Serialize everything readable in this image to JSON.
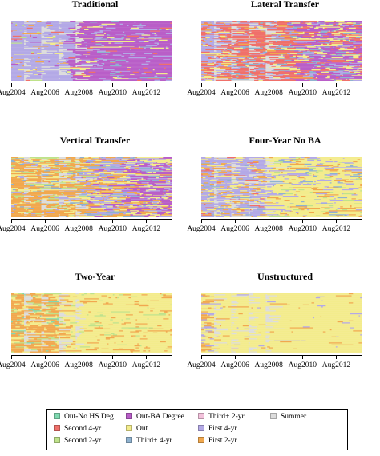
{
  "time_axis": {
    "start": "Aug2004",
    "end": "Dec2013",
    "tick_labels": [
      "Aug2004",
      "Aug2006",
      "Aug2008",
      "Aug2010",
      "Aug2012"
    ]
  },
  "states": [
    {
      "key": "out_no_hs",
      "label": "Out-No HS Deg",
      "color": "#7fd9b0"
    },
    {
      "key": "out",
      "label": "Out",
      "color": "#f3ec8c"
    },
    {
      "key": "first_4yr",
      "label": "First 4-yr",
      "color": "#b3a9e6"
    },
    {
      "key": "second_4yr",
      "label": "Second 4-yr",
      "color": "#f0706a"
    },
    {
      "key": "third_4yr",
      "label": "Third+ 4-yr",
      "color": "#8fb2cf"
    },
    {
      "key": "first_2yr",
      "label": "First 2-yr",
      "color": "#f1a84e"
    },
    {
      "key": "second_2yr",
      "label": "Second 2-yr",
      "color": "#bfe28a"
    },
    {
      "key": "third_2yr",
      "label": "Third+ 2-yr",
      "color": "#f3c2dc"
    },
    {
      "key": "summer",
      "label": "Summer",
      "color": "#dcdcdc"
    },
    {
      "key": "out_ba",
      "label": "Out-BA Degree",
      "color": "#b95ec8"
    }
  ],
  "chart_data": [
    {
      "type": "heatmap",
      "title": "Traditional",
      "regimes": [
        {
          "until": 0.36,
          "weights": {
            "first_4yr": 0.85,
            "first_2yr": 0.05,
            "second_4yr": 0.03,
            "out": 0.03,
            "second_2yr": 0.02,
            "out_ba": 0.02
          }
        },
        {
          "until": 1.0,
          "weights": {
            "out_ba": 0.82,
            "first_4yr": 0.08,
            "out": 0.04,
            "second_4yr": 0.03,
            "third_4yr": 0.03
          }
        }
      ]
    },
    {
      "type": "heatmap",
      "title": "Lateral Transfer",
      "regimes": [
        {
          "until": 0.12,
          "weights": {
            "first_4yr": 0.55,
            "second_4yr": 0.25,
            "first_2yr": 0.1,
            "out": 0.1
          }
        },
        {
          "until": 0.55,
          "weights": {
            "second_4yr": 0.6,
            "first_4yr": 0.15,
            "third_4yr": 0.1,
            "out": 0.08,
            "first_2yr": 0.07
          }
        },
        {
          "until": 1.0,
          "weights": {
            "out_ba": 0.45,
            "second_4yr": 0.18,
            "third_4yr": 0.12,
            "out": 0.15,
            "first_4yr": 0.1
          }
        }
      ]
    },
    {
      "type": "heatmap",
      "title": "Vertical Transfer",
      "regimes": [
        {
          "until": 0.45,
          "weights": {
            "first_2yr": 0.6,
            "out": 0.15,
            "second_2yr": 0.1,
            "first_4yr": 0.08,
            "third_4yr": 0.07
          }
        },
        {
          "until": 0.7,
          "weights": {
            "first_4yr": 0.4,
            "first_2yr": 0.25,
            "out": 0.15,
            "out_ba": 0.1,
            "third_4yr": 0.1
          }
        },
        {
          "until": 1.0,
          "weights": {
            "out_ba": 0.45,
            "first_4yr": 0.2,
            "out": 0.2,
            "first_2yr": 0.08,
            "third_4yr": 0.07
          }
        }
      ]
    },
    {
      "type": "heatmap",
      "title": "Four-Year No BA",
      "regimes": [
        {
          "until": 0.4,
          "weights": {
            "first_4yr": 0.6,
            "first_2yr": 0.15,
            "out": 0.15,
            "second_4yr": 0.05,
            "third_4yr": 0.05
          }
        },
        {
          "until": 1.0,
          "weights": {
            "out": 0.7,
            "first_4yr": 0.1,
            "first_2yr": 0.1,
            "second_2yr": 0.05,
            "third_4yr": 0.05
          }
        }
      ]
    },
    {
      "type": "heatmap",
      "title": "Two-Year",
      "regimes": [
        {
          "until": 0.3,
          "weights": {
            "first_2yr": 0.65,
            "out": 0.2,
            "second_2yr": 0.1,
            "out_no_hs": 0.05
          }
        },
        {
          "until": 1.0,
          "weights": {
            "out": 0.85,
            "first_2yr": 0.1,
            "second_2yr": 0.05
          }
        }
      ]
    },
    {
      "type": "heatmap",
      "title": "Unstructured",
      "regimes": [
        {
          "until": 0.05,
          "weights": {
            "out": 0.5,
            "first_2yr": 0.3,
            "first_4yr": 0.2
          }
        },
        {
          "until": 1.0,
          "weights": {
            "out": 0.95,
            "first_2yr": 0.03,
            "first_4yr": 0.02
          }
        }
      ]
    }
  ],
  "legend": {
    "items": [
      "out_no_hs",
      "second_4yr",
      "second_2yr",
      "out_ba",
      "out",
      "third_4yr",
      "third_2yr",
      "first_4yr",
      "first_2yr",
      "summer"
    ]
  }
}
